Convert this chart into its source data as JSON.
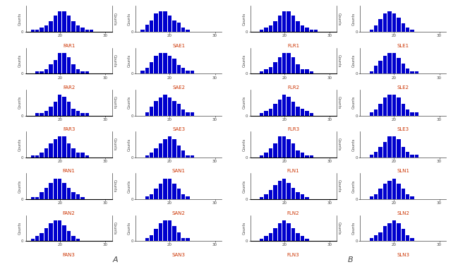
{
  "panels": {
    "A": {
      "col1": [
        {
          "name": "FAR1",
          "bins": [
            14,
            15,
            16,
            17,
            18,
            19,
            20,
            21,
            22,
            23,
            24,
            25,
            26,
            27,
            28
          ],
          "counts": [
            1,
            1,
            2,
            3,
            5,
            8,
            10,
            10,
            8,
            5,
            3,
            2,
            1,
            1,
            0
          ]
        },
        {
          "name": "FAR2",
          "bins": [
            14,
            15,
            16,
            17,
            18,
            19,
            20,
            21,
            22,
            23,
            24,
            25,
            26,
            27,
            28
          ],
          "counts": [
            0,
            1,
            1,
            2,
            4,
            6,
            9,
            9,
            7,
            4,
            2,
            1,
            1,
            0,
            0
          ]
        },
        {
          "name": "FAR3",
          "bins": [
            14,
            15,
            16,
            17,
            18,
            19,
            20,
            21,
            22,
            23,
            24,
            25,
            26,
            27,
            28
          ],
          "counts": [
            0,
            1,
            1,
            2,
            4,
            6,
            9,
            8,
            6,
            3,
            2,
            1,
            1,
            0,
            0
          ]
        },
        {
          "name": "FAN1",
          "bins": [
            14,
            15,
            16,
            17,
            18,
            19,
            20,
            21,
            22,
            23,
            24,
            25,
            26,
            27,
            28
          ],
          "counts": [
            1,
            1,
            2,
            4,
            6,
            8,
            9,
            9,
            6,
            4,
            2,
            2,
            1,
            0,
            0
          ]
        },
        {
          "name": "FAN2",
          "bins": [
            14,
            15,
            16,
            17,
            18,
            19,
            20,
            21,
            22,
            23,
            24,
            25,
            26,
            27,
            28
          ],
          "counts": [
            1,
            1,
            3,
            5,
            7,
            9,
            9,
            7,
            5,
            3,
            2,
            1,
            0,
            0,
            0
          ]
        },
        {
          "name": "FAN3",
          "bins": [
            14,
            15,
            16,
            17,
            18,
            19,
            20,
            21,
            22,
            23,
            24,
            25,
            26,
            27,
            28
          ],
          "counts": [
            1,
            2,
            3,
            5,
            7,
            8,
            8,
            6,
            4,
            2,
            1,
            0,
            0,
            0,
            0
          ]
        }
      ],
      "col2": [
        {
          "name": "SAE1",
          "bins": [
            14,
            15,
            16,
            17,
            18,
            19,
            20,
            21,
            22,
            23,
            24,
            25,
            26,
            27,
            28
          ],
          "counts": [
            1,
            3,
            5,
            8,
            9,
            9,
            7,
            5,
            4,
            2,
            1,
            0,
            0,
            0,
            0
          ]
        },
        {
          "name": "SAE2",
          "bins": [
            14,
            15,
            16,
            17,
            18,
            19,
            20,
            21,
            22,
            23,
            24,
            25,
            26,
            27,
            28
          ],
          "counts": [
            1,
            2,
            4,
            6,
            7,
            7,
            6,
            5,
            3,
            2,
            1,
            1,
            0,
            0,
            0
          ]
        },
        {
          "name": "SAE3",
          "bins": [
            14,
            15,
            16,
            17,
            18,
            19,
            20,
            21,
            22,
            23,
            24,
            25,
            26,
            27,
            28
          ],
          "counts": [
            0,
            1,
            3,
            5,
            6,
            7,
            6,
            5,
            4,
            2,
            1,
            1,
            0,
            0,
            0
          ]
        },
        {
          "name": "SAN1",
          "bins": [
            14,
            15,
            16,
            17,
            18,
            19,
            20,
            21,
            22,
            23,
            24,
            25,
            26,
            27,
            28
          ],
          "counts": [
            0,
            1,
            2,
            4,
            6,
            8,
            9,
            8,
            5,
            3,
            1,
            1,
            0,
            0,
            0
          ]
        },
        {
          "name": "SAN2",
          "bins": [
            14,
            15,
            16,
            17,
            18,
            19,
            20,
            21,
            22,
            23,
            24,
            25,
            26,
            27,
            28
          ],
          "counts": [
            0,
            1,
            2,
            4,
            6,
            8,
            8,
            6,
            4,
            2,
            1,
            0,
            0,
            0,
            0
          ]
        },
        {
          "name": "SAN3",
          "bins": [
            14,
            15,
            16,
            17,
            18,
            19,
            20,
            21,
            22,
            23,
            24,
            25,
            26,
            27,
            28
          ],
          "counts": [
            0,
            1,
            2,
            4,
            6,
            7,
            7,
            5,
            3,
            1,
            1,
            0,
            0,
            0,
            0
          ]
        }
      ]
    },
    "B": {
      "col1": [
        {
          "name": "FLR1",
          "bins": [
            14,
            15,
            16,
            17,
            18,
            19,
            20,
            21,
            22,
            23,
            24,
            25,
            26,
            27,
            28
          ],
          "counts": [
            0,
            1,
            2,
            3,
            5,
            8,
            10,
            10,
            8,
            5,
            3,
            2,
            1,
            1,
            0
          ]
        },
        {
          "name": "FLR2",
          "bins": [
            14,
            15,
            16,
            17,
            18,
            19,
            20,
            21,
            22,
            23,
            24,
            25,
            26,
            27,
            28
          ],
          "counts": [
            0,
            1,
            2,
            3,
            5,
            7,
            9,
            9,
            7,
            4,
            2,
            2,
            1,
            0,
            0
          ]
        },
        {
          "name": "FLR3",
          "bins": [
            14,
            15,
            16,
            17,
            18,
            19,
            20,
            21,
            22,
            23,
            24,
            25,
            26,
            27,
            28
          ],
          "counts": [
            0,
            1,
            2,
            3,
            5,
            7,
            9,
            8,
            6,
            4,
            3,
            2,
            1,
            0,
            0
          ]
        },
        {
          "name": "FLN1",
          "bins": [
            14,
            15,
            16,
            17,
            18,
            19,
            20,
            21,
            22,
            23,
            24,
            25,
            26,
            27,
            28
          ],
          "counts": [
            0,
            1,
            2,
            4,
            6,
            9,
            9,
            8,
            6,
            3,
            2,
            1,
            1,
            0,
            0
          ]
        },
        {
          "name": "FLN2",
          "bins": [
            14,
            15,
            16,
            17,
            18,
            19,
            20,
            21,
            22,
            23,
            24,
            25,
            26,
            27,
            28
          ],
          "counts": [
            0,
            1,
            2,
            4,
            6,
            8,
            9,
            7,
            5,
            3,
            2,
            1,
            0,
            0,
            0
          ]
        },
        {
          "name": "FLN3",
          "bins": [
            14,
            15,
            16,
            17,
            18,
            19,
            20,
            21,
            22,
            23,
            24,
            25,
            26,
            27,
            28
          ],
          "counts": [
            0,
            1,
            2,
            3,
            5,
            7,
            8,
            7,
            5,
            3,
            2,
            1,
            0,
            0,
            0
          ]
        }
      ],
      "col2": [
        {
          "name": "SLE1",
          "bins": [
            14,
            15,
            16,
            17,
            18,
            19,
            20,
            21,
            22,
            23,
            24,
            25,
            26,
            27,
            28
          ],
          "counts": [
            0,
            1,
            3,
            6,
            9,
            10,
            9,
            7,
            4,
            2,
            1,
            0,
            0,
            0,
            0
          ]
        },
        {
          "name": "SLE2",
          "bins": [
            14,
            15,
            16,
            17,
            18,
            19,
            20,
            21,
            22,
            23,
            24,
            25,
            26,
            27,
            28
          ],
          "counts": [
            0,
            1,
            3,
            5,
            7,
            8,
            8,
            6,
            4,
            2,
            1,
            1,
            0,
            0,
            0
          ]
        },
        {
          "name": "SLE3",
          "bins": [
            14,
            15,
            16,
            17,
            18,
            19,
            20,
            21,
            22,
            23,
            24,
            25,
            26,
            27,
            28
          ],
          "counts": [
            0,
            1,
            2,
            4,
            6,
            7,
            7,
            6,
            4,
            2,
            1,
            1,
            0,
            0,
            0
          ]
        },
        {
          "name": "SLN1",
          "bins": [
            14,
            15,
            16,
            17,
            18,
            19,
            20,
            21,
            22,
            23,
            24,
            25,
            26,
            27,
            28
          ],
          "counts": [
            0,
            1,
            2,
            4,
            6,
            8,
            8,
            7,
            4,
            2,
            1,
            1,
            0,
            0,
            0
          ]
        },
        {
          "name": "SLN2",
          "bins": [
            14,
            15,
            16,
            17,
            18,
            19,
            20,
            21,
            22,
            23,
            24,
            25,
            26,
            27,
            28
          ],
          "counts": [
            0,
            1,
            2,
            4,
            6,
            7,
            8,
            6,
            4,
            2,
            1,
            0,
            0,
            0,
            0
          ]
        },
        {
          "name": "SLN3",
          "bins": [
            14,
            15,
            16,
            17,
            18,
            19,
            20,
            21,
            22,
            23,
            24,
            25,
            26,
            27,
            28
          ],
          "counts": [
            0,
            1,
            2,
            3,
            5,
            6,
            7,
            6,
            4,
            2,
            1,
            0,
            0,
            0,
            0
          ]
        }
      ]
    }
  },
  "bar_color": "#0000CD",
  "label_color": "#CC3300",
  "axis_color": "#444444",
  "counts_label": "Counts",
  "panel_label_A": "A",
  "panel_label_B": "B",
  "bg_color": "#FFFFFF",
  "figure_width": 6.66,
  "figure_height": 3.78
}
